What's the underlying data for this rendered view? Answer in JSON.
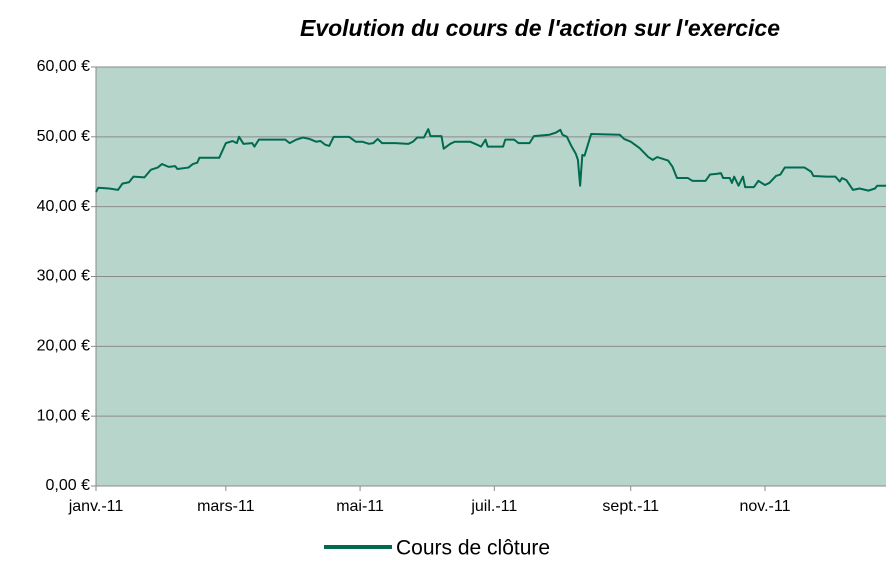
{
  "chart_data": {
    "type": "line",
    "title": "Evolution du cours de l'action sur l'exercice",
    "x": [
      0,
      1,
      6,
      10,
      12,
      15,
      17,
      22,
      25,
      28,
      30,
      33,
      36,
      37,
      42,
      44,
      46,
      47,
      56,
      59,
      62,
      64,
      65,
      67,
      71,
      72,
      74,
      79,
      86,
      88,
      91,
      94,
      97,
      100,
      102,
      104,
      106,
      108,
      115,
      118,
      121,
      124,
      126,
      128,
      130,
      136,
      142,
      144,
      146,
      149,
      151,
      152,
      157,
      158,
      161,
      163,
      170,
      173,
      175,
      177,
      178,
      185,
      186,
      190,
      192,
      197,
      199,
      206,
      209,
      211,
      212,
      214,
      216,
      218,
      219,
      220,
      221,
      222,
      225,
      238,
      240,
      243,
      247,
      251,
      253,
      255,
      260,
      262,
      264,
      269,
      271,
      277,
      279,
      282,
      284,
      285,
      288,
      289,
      290,
      292,
      294,
      295,
      299,
      301,
      304,
      306,
      309,
      311,
      313,
      322,
      325,
      326,
      332,
      336,
      338,
      339,
      341,
      344,
      347,
      351,
      354,
      355,
      359
    ],
    "series": [
      {
        "name": "Cours de clôture",
        "color": "#006b4f",
        "values": [
          42.1,
          42.7,
          42.6,
          42.4,
          43.3,
          43.5,
          44.3,
          44.2,
          45.3,
          45.6,
          46.1,
          45.7,
          45.8,
          45.4,
          45.6,
          46.1,
          46.3,
          47.0,
          47.0,
          49.1,
          49.4,
          49.1,
          50.0,
          49.0,
          49.1,
          48.6,
          49.6,
          49.6,
          49.6,
          49.1,
          49.6,
          49.9,
          49.7,
          49.3,
          49.4,
          48.9,
          48.7,
          50.0,
          50.0,
          49.3,
          49.3,
          49.0,
          49.1,
          49.7,
          49.1,
          49.1,
          49.0,
          49.3,
          49.9,
          49.9,
          51.1,
          50.1,
          50.1,
          48.3,
          49.0,
          49.3,
          49.3,
          48.9,
          48.6,
          49.6,
          48.6,
          48.6,
          49.6,
          49.6,
          49.1,
          49.1,
          50.1,
          50.3,
          50.6,
          51.0,
          50.3,
          50.0,
          48.7,
          47.6,
          46.7,
          43.0,
          47.4,
          47.3,
          50.4,
          50.3,
          49.7,
          49.3,
          48.4,
          47.1,
          46.7,
          47.1,
          46.6,
          45.7,
          44.1,
          44.1,
          43.7,
          43.7,
          44.6,
          44.7,
          44.8,
          44.1,
          44.1,
          43.4,
          44.3,
          43.0,
          44.3,
          42.8,
          42.8,
          43.7,
          43.1,
          43.4,
          44.4,
          44.6,
          45.6,
          45.6,
          45.0,
          44.4,
          44.3,
          44.3,
          43.6,
          44.1,
          43.8,
          42.4,
          42.6,
          42.3,
          42.6,
          43.0,
          43.0
        ]
      }
    ],
    "xlim": [
      0,
      359
    ],
    "xticks": [
      {
        "value": 0,
        "label": "janv.-11"
      },
      {
        "value": 59,
        "label": "mars-11"
      },
      {
        "value": 120,
        "label": "mai-11"
      },
      {
        "value": 181,
        "label": "juil.-11"
      },
      {
        "value": 243,
        "label": "sept.-11"
      },
      {
        "value": 304,
        "label": "nov.-11"
      }
    ],
    "ylim": [
      0,
      60
    ],
    "yticks": [
      {
        "value": 0,
        "label": "0,00 €"
      },
      {
        "value": 10,
        "label": "10,00 €"
      },
      {
        "value": 20,
        "label": "20,00 €"
      },
      {
        "value": 30,
        "label": "30,00 €"
      },
      {
        "value": 40,
        "label": "40,00 €"
      },
      {
        "value": 50,
        "label": "50,00 €"
      },
      {
        "value": 60,
        "label": "60,00 €"
      }
    ],
    "grid": true,
    "legend": "bottom",
    "background": "#b8d5cc"
  }
}
